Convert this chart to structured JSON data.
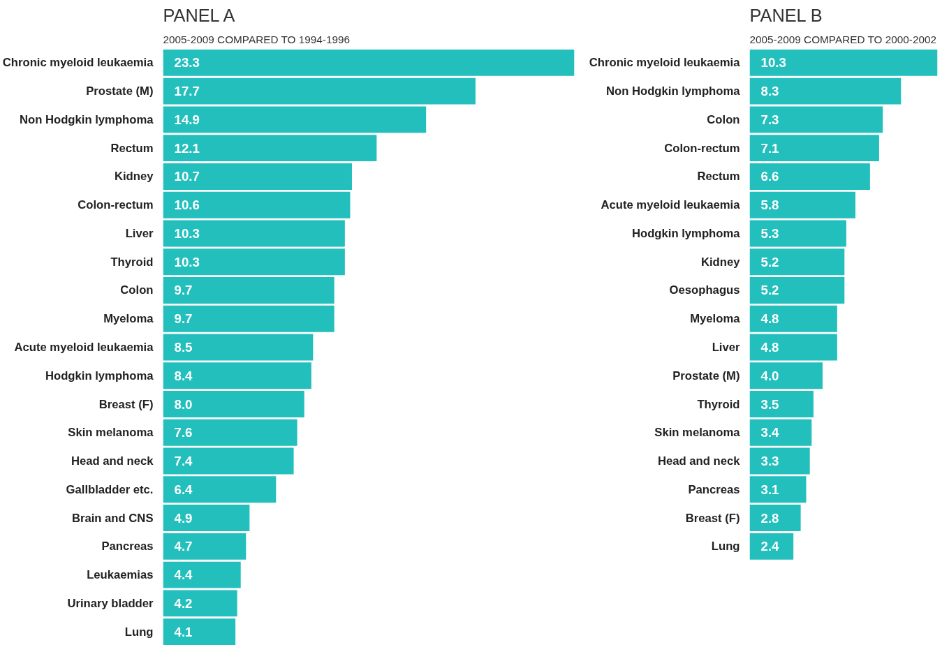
{
  "chart_data": [
    {
      "type": "bar",
      "orientation": "horizontal",
      "title": "PANEL A",
      "subtitle": "2005-2009 COMPARED TO 1994-1996",
      "data_labels": true,
      "color": "#22bfbd",
      "categories": [
        "Chronic myeloid leukaemia",
        "Prostate (M)",
        "Non Hodgkin lymphoma",
        "Rectum",
        "Kidney",
        "Colon-rectum",
        "Liver",
        "Thyroid",
        "Colon",
        "Myeloma",
        "Acute myeloid leukaemia",
        "Hodgkin lymphoma",
        "Breast (F)",
        "Skin melanoma",
        "Head and neck",
        "Gallbladder etc.",
        "Brain and CNS",
        "Pancreas",
        "Leukaemias",
        "Urinary bladder",
        "Lung"
      ],
      "values": [
        23.3,
        17.7,
        14.9,
        12.1,
        10.7,
        10.6,
        10.3,
        10.3,
        9.7,
        9.7,
        8.5,
        8.4,
        8.0,
        7.6,
        7.4,
        6.4,
        4.9,
        4.7,
        4.4,
        4.2,
        4.1
      ],
      "value_labels": [
        "23.3",
        "17.7",
        "14.9",
        "12.1",
        "10.7",
        "10.6",
        "10.3",
        "10.3",
        "9.7",
        "9.7",
        "8.5",
        "8.4",
        "8.0",
        "7.6",
        "7.4",
        "6.4",
        "4.9",
        "4.7",
        "4.4",
        "4.2",
        "4.1"
      ]
    },
    {
      "type": "bar",
      "orientation": "horizontal",
      "title": "PANEL B",
      "subtitle": "2005-2009 COMPARED TO 2000-2002",
      "data_labels": true,
      "color": "#22bfbd",
      "categories": [
        "Chronic myeloid leukaemia",
        "Non Hodgkin lymphoma",
        "Colon",
        "Colon-rectum",
        "Rectum",
        "Acute myeloid leukaemia",
        "Hodgkin lymphoma",
        "Kidney",
        "Oesophagus",
        "Myeloma",
        "Liver",
        "Prostate (M)",
        "Thyroid",
        "Skin melanoma",
        "Head and neck",
        "Pancreas",
        "Breast (F)",
        "Lung"
      ],
      "values": [
        10.3,
        8.3,
        7.3,
        7.1,
        6.6,
        5.8,
        5.3,
        5.2,
        5.2,
        4.8,
        4.8,
        4.0,
        3.5,
        3.4,
        3.3,
        3.1,
        2.8,
        2.4
      ],
      "value_labels": [
        "10.3",
        "8.3",
        "7.3",
        "7.1",
        "6.6",
        "5.8",
        "5.3",
        "5.2",
        "5.2",
        "4.8",
        "4.8",
        "4.0",
        "3.5",
        "3.4",
        "3.3",
        "3.1",
        "2.8",
        "2.4"
      ]
    }
  ]
}
